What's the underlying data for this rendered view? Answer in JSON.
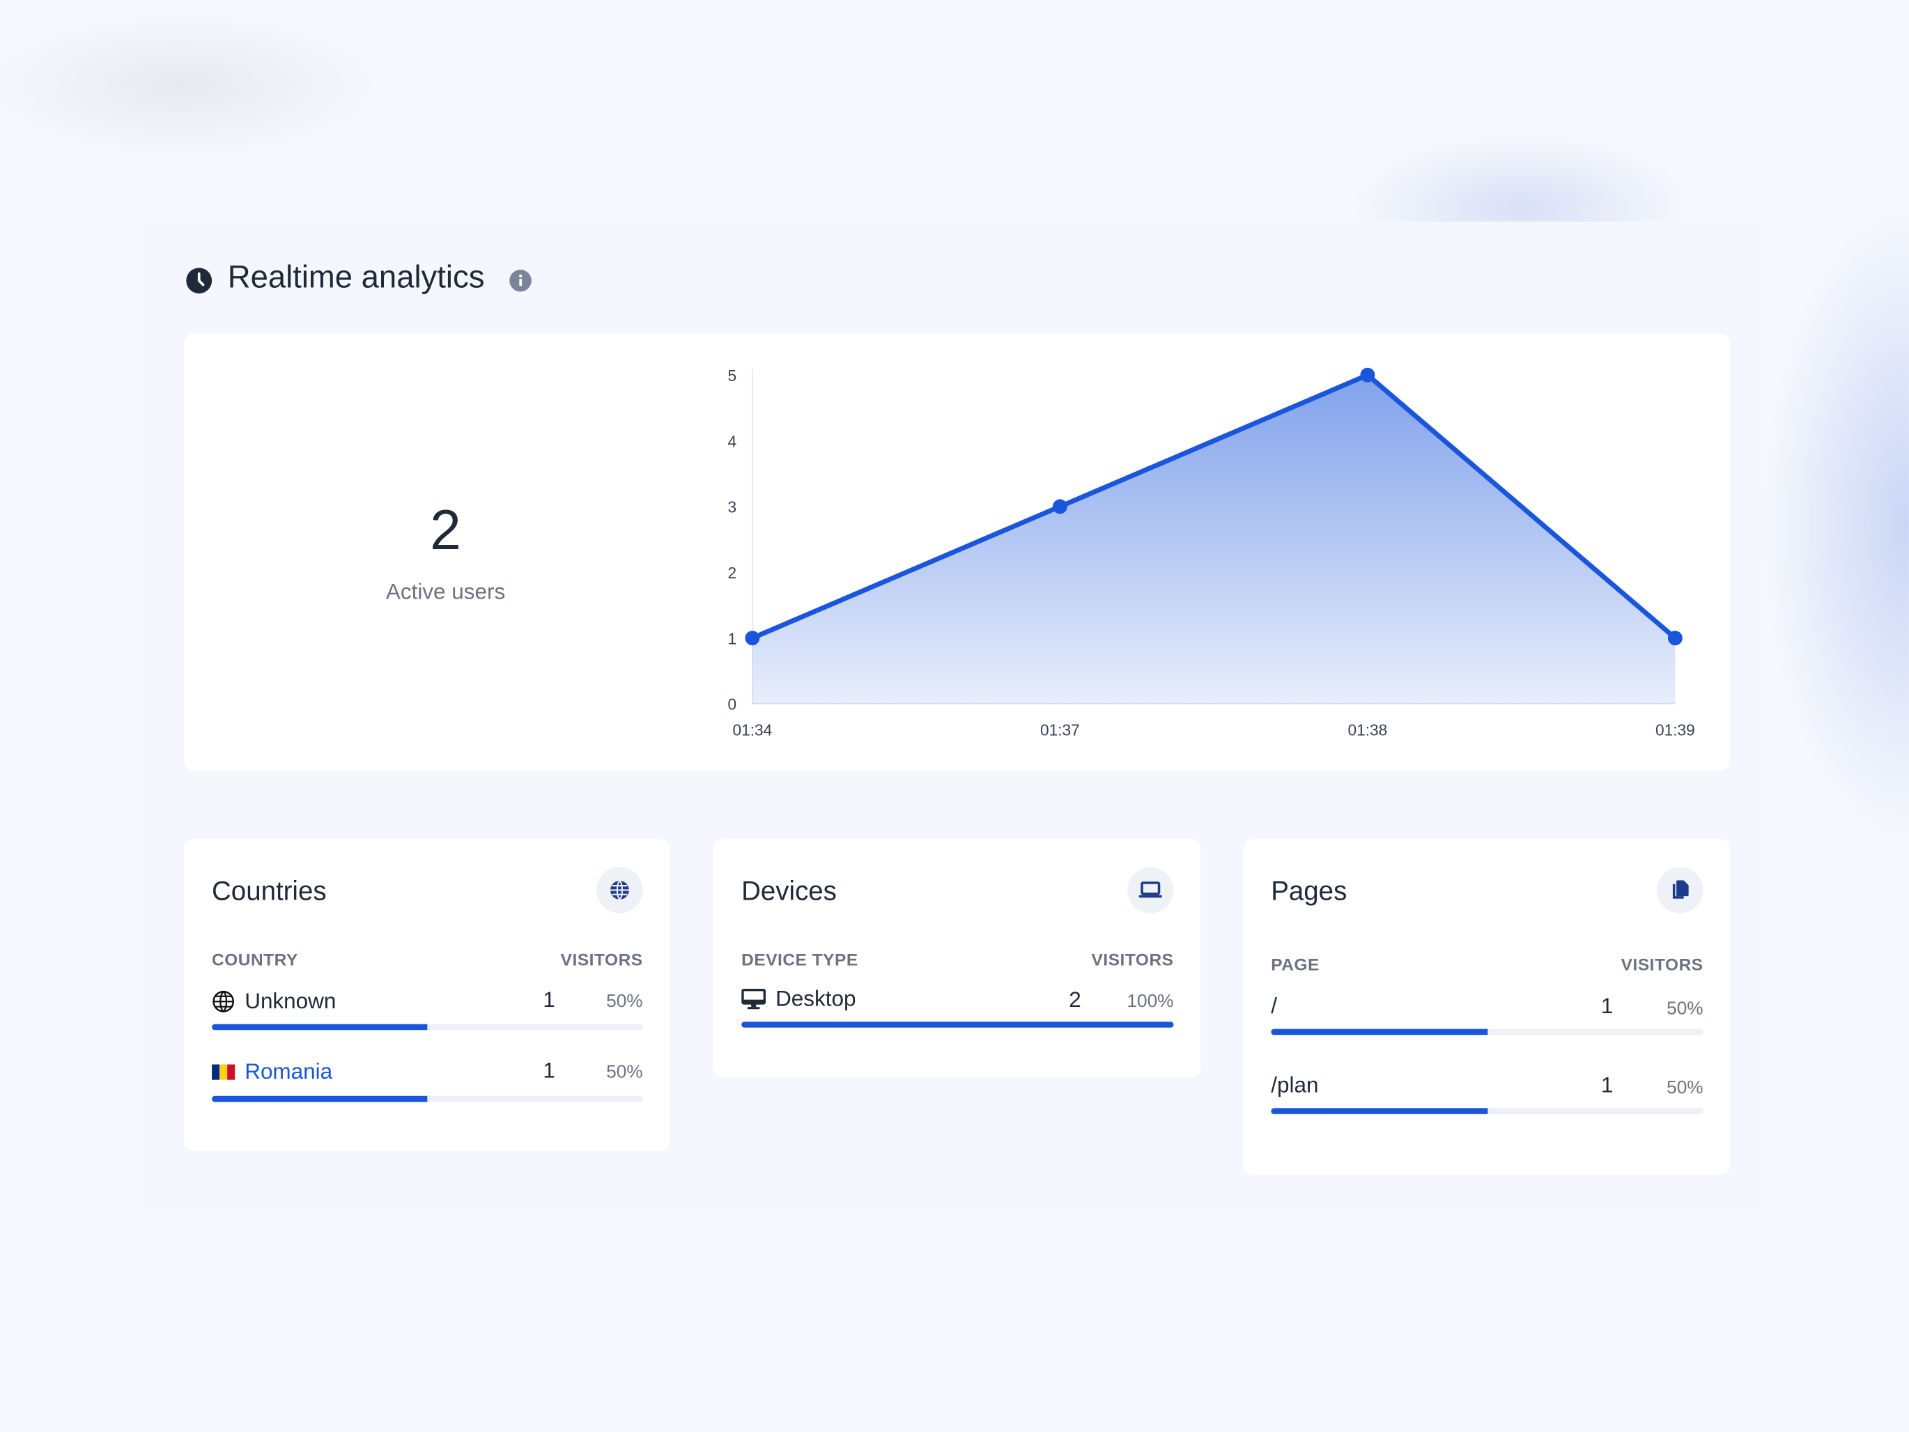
{
  "header": {
    "title": "Realtime analytics",
    "icon": "clock-icon",
    "info_icon": "info-icon"
  },
  "summary": {
    "value": "2",
    "label": "Active users"
  },
  "colors": {
    "accent": "#1a56db",
    "text": "#1f2937",
    "muted": "#6b7280"
  },
  "chart_data": {
    "type": "area",
    "x": [
      "01:34",
      "01:37",
      "01:38",
      "01:39"
    ],
    "values": [
      1,
      3,
      5,
      1
    ],
    "ylim": [
      0,
      5
    ],
    "yticks": [
      "0",
      "1",
      "2",
      "3",
      "4",
      "5"
    ],
    "grid": false
  },
  "countries": {
    "title": "Countries",
    "icon": "globe-icon",
    "col1": "COUNTRY",
    "col2": "VISITORS",
    "rows": [
      {
        "label": "Unknown",
        "icon": "globe-outline-icon",
        "visitors": "1",
        "percent": "50%",
        "fill": 50
      },
      {
        "label": "Romania",
        "icon": "romania-flag-icon",
        "visitors": "1",
        "percent": "50%",
        "fill": 50
      }
    ]
  },
  "devices": {
    "title": "Devices",
    "icon": "laptop-icon",
    "col1": "DEVICE TYPE",
    "col2": "VISITORS",
    "rows": [
      {
        "label": "Desktop",
        "icon": "desktop-icon",
        "visitors": "2",
        "percent": "100%",
        "fill": 100
      }
    ]
  },
  "pages": {
    "title": "Pages",
    "icon": "copy-pages-icon",
    "col1": "PAGE",
    "col2": "VISITORS",
    "rows": [
      {
        "label": "/",
        "visitors": "1",
        "percent": "50%",
        "fill": 50
      },
      {
        "label": "/plan",
        "visitors": "1",
        "percent": "50%",
        "fill": 50
      }
    ]
  }
}
